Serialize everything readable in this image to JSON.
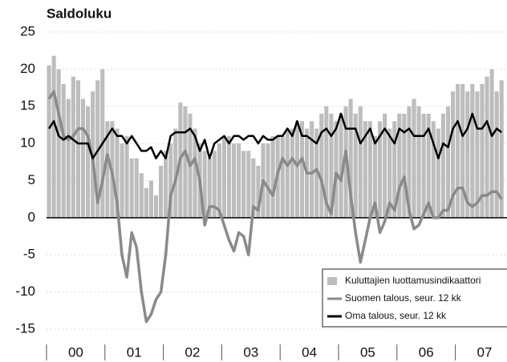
{
  "chart_data": {
    "type": "bar_line",
    "title": "Saldoluku",
    "year_labels": [
      "00",
      "01",
      "02",
      "03",
      "04",
      "05",
      "06",
      "07"
    ],
    "ylim": [
      -15,
      25
    ],
    "yticks": [
      25,
      20,
      15,
      10,
      5,
      0,
      -5,
      -10,
      -15
    ],
    "grid": true,
    "legend": "lower right",
    "series": [
      {
        "name": "Kuluttajien luottamusindikaattori",
        "kind": "bar",
        "color": "#bdbdbd",
        "values": [
          20.5,
          21.8,
          20,
          18,
          16,
          19,
          18.5,
          16,
          15,
          17,
          18.5,
          20,
          13,
          13,
          12,
          10,
          11,
          8,
          8,
          6,
          4,
          5,
          3,
          7,
          9,
          10,
          12,
          15.5,
          15,
          14,
          12,
          10,
          9,
          8,
          9,
          10,
          11,
          11,
          10,
          10,
          9,
          9,
          8,
          7,
          10,
          10,
          11,
          11,
          11,
          12,
          12,
          13,
          13,
          12,
          13,
          12,
          14,
          15,
          14,
          13,
          14,
          15,
          16,
          14,
          15,
          13,
          13,
          11,
          13,
          14,
          12,
          13,
          14,
          14,
          15,
          16,
          15,
          14,
          14,
          13,
          12,
          14,
          15,
          17,
          18,
          18,
          17,
          18,
          17,
          18,
          19,
          20,
          17,
          18.5
        ]
      },
      {
        "name": "Suomen talous, seur. 12 kk",
        "kind": "line",
        "color": "#8a8a8a",
        "values": [
          16,
          17,
          14,
          11,
          10.5,
          11,
          12,
          12,
          11,
          8,
          2,
          5,
          8.5,
          6,
          2,
          -5,
          -8,
          -2,
          -4,
          -10,
          -14,
          -13,
          -11,
          -10,
          -5,
          3,
          5,
          8,
          9,
          7,
          8,
          5,
          -1,
          1.5,
          1.5,
          1,
          -1,
          -3,
          -4.5,
          -2,
          -2.5,
          -5,
          1.5,
          1,
          5,
          4,
          3,
          6,
          8,
          7,
          8,
          7,
          8,
          6,
          6,
          6.5,
          5,
          2,
          0.5,
          6,
          5,
          9,
          3,
          -2,
          -6,
          -3,
          0,
          2,
          -2,
          -0.5,
          2,
          1,
          4,
          5.5,
          1,
          -1.5,
          -1,
          0.5,
          2,
          0,
          0,
          1,
          1,
          3,
          4,
          4,
          2,
          1.5,
          2,
          3,
          3,
          3.5,
          3.5,
          2.5
        ]
      },
      {
        "name": "Oma talous, seur. 12 kk",
        "kind": "line",
        "color": "#000000",
        "values": [
          12,
          13,
          11,
          10.5,
          11,
          10.5,
          10,
          10,
          10,
          8,
          9,
          10,
          11,
          12,
          11,
          11,
          10,
          11,
          10,
          9,
          9,
          9.5,
          8,
          9,
          8,
          11,
          11.5,
          11.5,
          11.5,
          12,
          11,
          9,
          10.5,
          8,
          10,
          10.5,
          11,
          10,
          11,
          11,
          10.5,
          11,
          11,
          10,
          11,
          10.5,
          10.5,
          11,
          11,
          12,
          11,
          13,
          11,
          11,
          10.5,
          10,
          11.5,
          12,
          11,
          12,
          14,
          12,
          12,
          12,
          10,
          11,
          12,
          10,
          11,
          12,
          11,
          10,
          12,
          11.5,
          12,
          11,
          11,
          11,
          12,
          10,
          8,
          10,
          9.5,
          12,
          13,
          11,
          12,
          14,
          12,
          12,
          13,
          11,
          12,
          11.5
        ]
      }
    ]
  }
}
